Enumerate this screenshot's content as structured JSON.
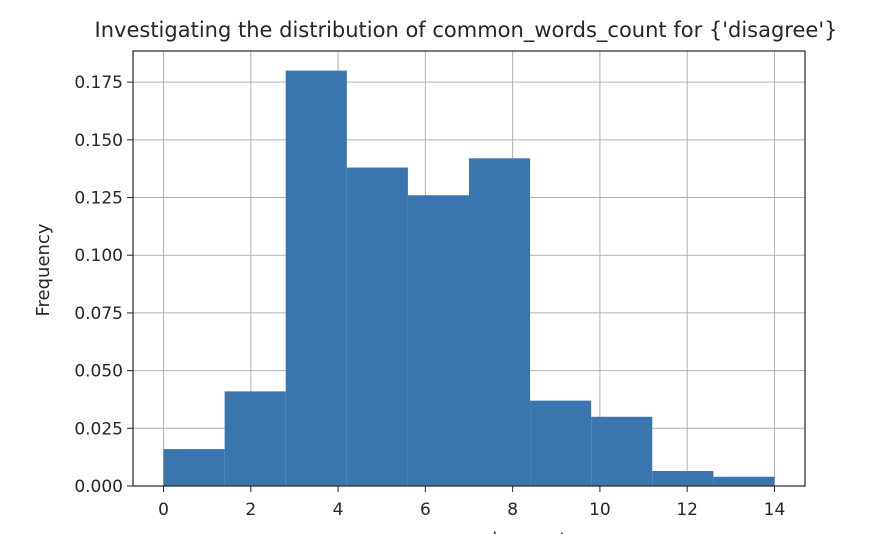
{
  "chart_data": {
    "type": "bar",
    "title": "Investigating the distribution of common_words_count for {'disagree'}",
    "xlabel": "common_words_count",
    "ylabel": "Frequency",
    "xlim": [
      -0.7,
      14.7
    ],
    "ylim": [
      0,
      0.1885
    ],
    "xticks": [
      0,
      2,
      4,
      6,
      8,
      10,
      12,
      14
    ],
    "yticks": [
      0.0,
      0.025,
      0.05,
      0.075,
      0.1,
      0.125,
      0.15,
      0.175
    ],
    "ytick_labels": [
      "0.000",
      "0.025",
      "0.050",
      "0.075",
      "0.100",
      "0.125",
      "0.150",
      "0.175"
    ],
    "grid": true,
    "bar_color": "#3a75ae",
    "bins": [
      {
        "x0": 0.0,
        "x1": 1.4,
        "value": 0.016
      },
      {
        "x0": 1.4,
        "x1": 2.8,
        "value": 0.041
      },
      {
        "x0": 2.8,
        "x1": 4.2,
        "value": 0.18
      },
      {
        "x0": 4.2,
        "x1": 5.6,
        "value": 0.138
      },
      {
        "x0": 5.6,
        "x1": 7.0,
        "value": 0.126
      },
      {
        "x0": 7.0,
        "x1": 8.4,
        "value": 0.142
      },
      {
        "x0": 8.4,
        "x1": 9.8,
        "value": 0.037
      },
      {
        "x0": 9.8,
        "x1": 11.2,
        "value": 0.03
      },
      {
        "x0": 11.2,
        "x1": 12.6,
        "value": 0.0065
      },
      {
        "x0": 12.6,
        "x1": 14.0,
        "value": 0.004
      }
    ]
  }
}
